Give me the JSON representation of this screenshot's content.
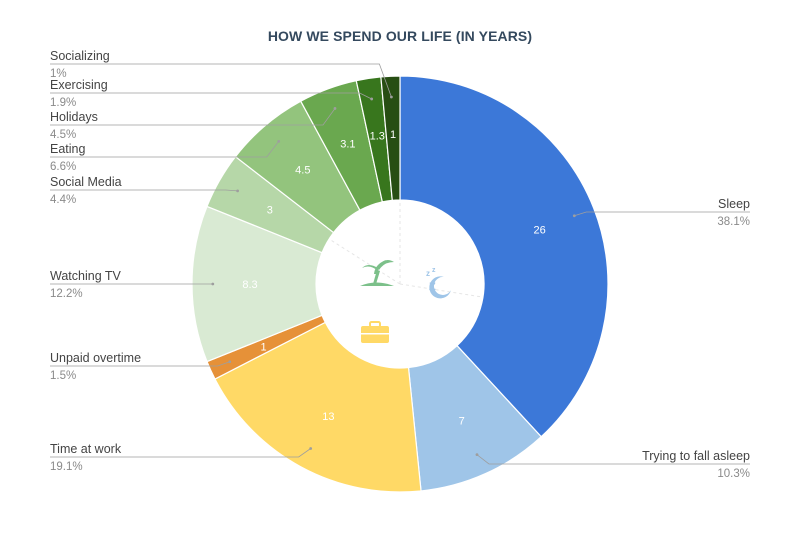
{
  "chart_data": {
    "type": "pie",
    "title": "HOW WE SPEND OUR LIFE (IN YEARS)",
    "slices": [
      {
        "label": "Sleep",
        "value": 26,
        "value_label": "26",
        "percent": "38.1%",
        "color": "#3c78d8"
      },
      {
        "label": "Trying to fall asleep",
        "value": 7,
        "value_label": "7",
        "percent": "10.3%",
        "color": "#9fc5e8"
      },
      {
        "label": "Time at work",
        "value": 13,
        "value_label": "13",
        "percent": "19.1%",
        "color": "#ffd966"
      },
      {
        "label": "Unpaid overtime",
        "value": 1,
        "value_label": "1",
        "percent": "1.5%",
        "color": "#e69138"
      },
      {
        "label": "Watching TV",
        "value": 8.3,
        "value_label": "8.3",
        "percent": "12.2%",
        "color": "#d9ead3"
      },
      {
        "label": "Social Media",
        "value": 3,
        "value_label": "3",
        "percent": "4.4%",
        "color": "#b6d7a8"
      },
      {
        "label": "Eating",
        "value": 4.5,
        "value_label": "4.5",
        "percent": "6.6%",
        "color": "#93c47d"
      },
      {
        "label": "Holidays",
        "value": 3.1,
        "value_label": "3.1",
        "percent": "4.5%",
        "color": "#6aa84f"
      },
      {
        "label": "Exercising",
        "value": 1.3,
        "value_label": "1.3",
        "percent": "1.9%",
        "color": "#38761d"
      },
      {
        "label": "Socializing",
        "value": 1,
        "value_label": "1",
        "percent": "1%",
        "color": "#274e13"
      }
    ],
    "center_icons": [
      "palm-tree-icon",
      "sleep-moon-icon",
      "briefcase-icon"
    ]
  }
}
